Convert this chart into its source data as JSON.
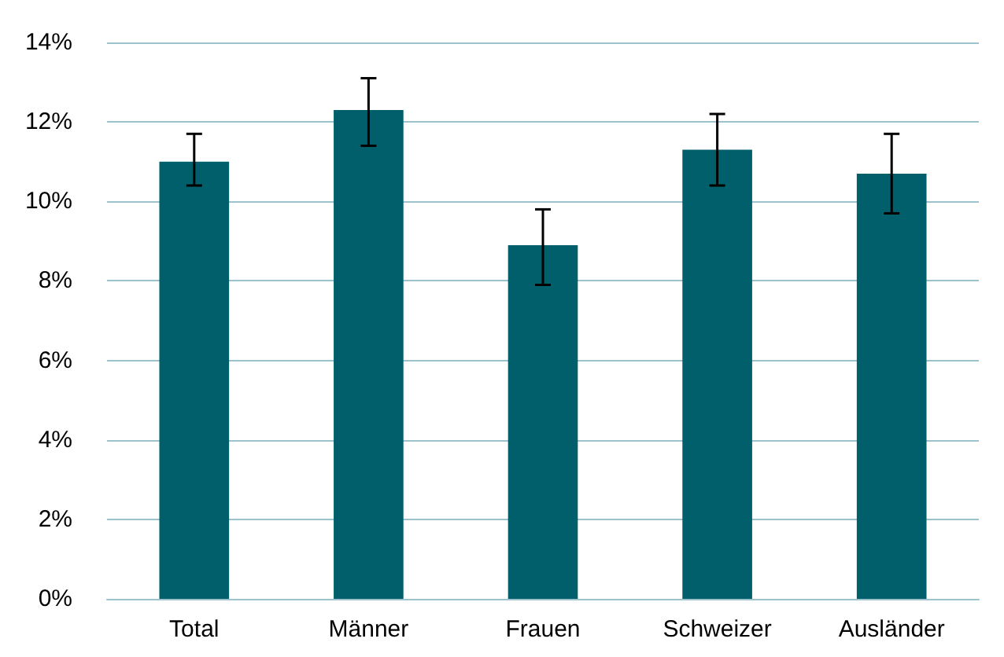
{
  "chart_data": {
    "type": "bar",
    "categories": [
      "Total",
      "Männer",
      "Frauen",
      "Schweizer",
      "Ausländer"
    ],
    "values": [
      11.0,
      12.3,
      8.9,
      11.3,
      10.7
    ],
    "errors": [
      [
        10.4,
        11.7
      ],
      [
        11.4,
        13.1
      ],
      [
        7.9,
        9.8
      ],
      [
        10.4,
        12.2
      ],
      [
        9.7,
        11.7
      ]
    ],
    "color": "#005f6b",
    "ylim": [
      0,
      14
    ],
    "yticks": [
      {
        "value": 0,
        "label": "0%"
      },
      {
        "value": 2,
        "label": "2%"
      },
      {
        "value": 4,
        "label": "4%"
      },
      {
        "value": 6,
        "label": "6%"
      },
      {
        "value": 8,
        "label": "8%"
      },
      {
        "value": 10,
        "label": "10%"
      },
      {
        "value": 12,
        "label": "12%"
      },
      {
        "value": 14,
        "label": "14%"
      }
    ],
    "grid": "y"
  }
}
